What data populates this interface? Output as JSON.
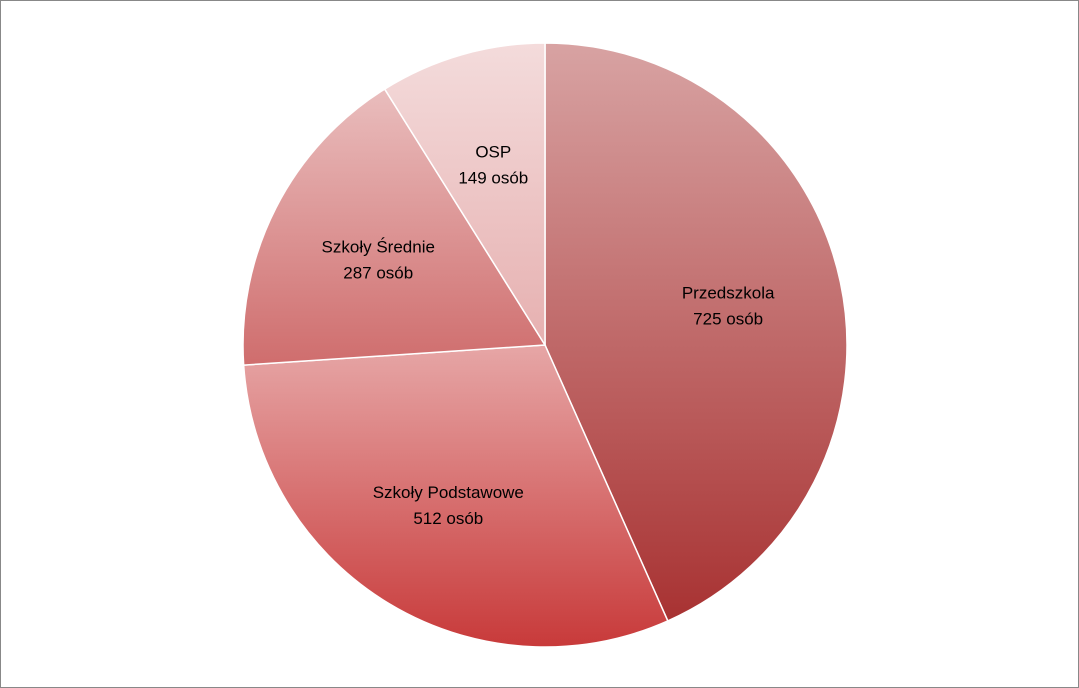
{
  "chart_data": {
    "type": "pie",
    "categories": [
      "Przedszkola",
      "Szkoły Podstawowe",
      "Szkoły Średnie",
      "OSP"
    ],
    "values": [
      725,
      512,
      287,
      149
    ],
    "value_labels": [
      "725 osób",
      "512 osób",
      "287 osób",
      "149 osób"
    ],
    "colors": [
      "#a83232",
      "#c83a3a",
      "#cf6d6d",
      "#e6b0b0"
    ]
  }
}
